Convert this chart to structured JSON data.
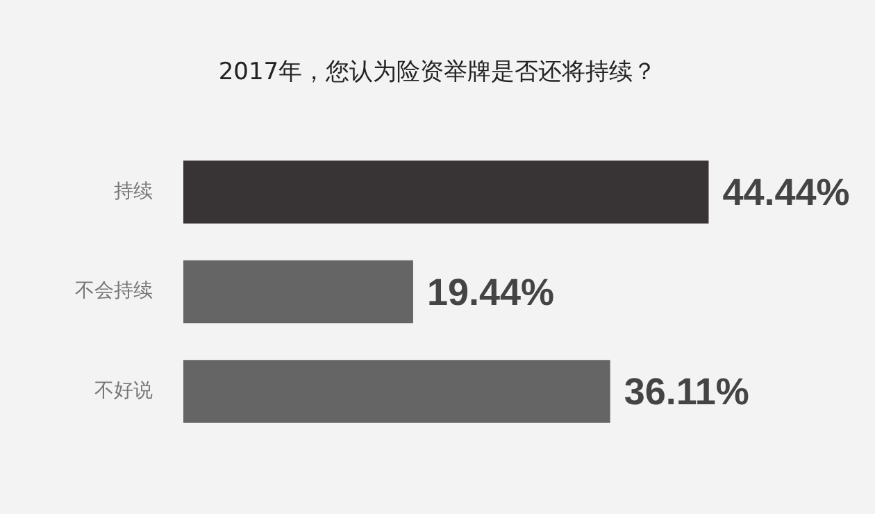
{
  "chart_data": {
    "type": "bar",
    "orientation": "horizontal",
    "title": "2017年，您认为险资举牌是否还将持续？",
    "categories": [
      "持续",
      "不会持续",
      "不好说"
    ],
    "values": [
      44.44,
      19.44,
      36.11
    ],
    "value_labels": [
      "44.44%",
      "19.44%",
      "36.11%"
    ],
    "colors": [
      "#383435",
      "#666565",
      "#666565"
    ],
    "tick_labels": "y"
  }
}
